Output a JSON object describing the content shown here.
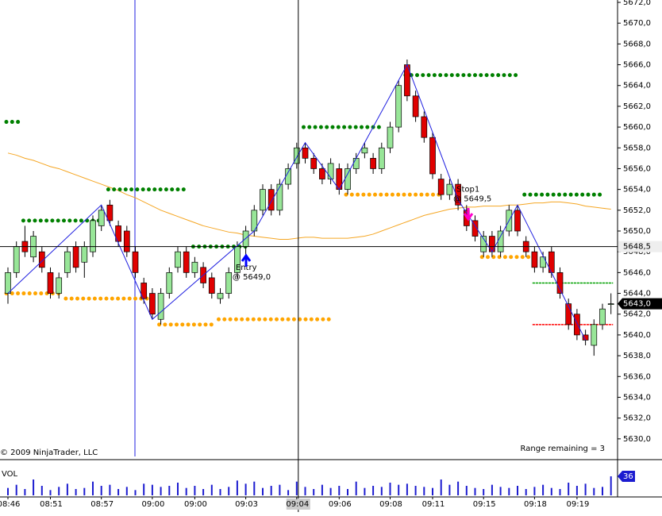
{
  "chart_data": {
    "type": "candlestick",
    "copyright": "© 2009 NinjaTrader, LLC",
    "status": "Range remaining = 3",
    "volume_label": "VOL",
    "ylim": [
      5628,
      5672
    ],
    "yticks": [
      {
        "value": 5630,
        "label": "5630,0"
      },
      {
        "value": 5632,
        "label": "5632,0"
      },
      {
        "value": 5634,
        "label": "5634,0"
      },
      {
        "value": 5636,
        "label": "5636,0"
      },
      {
        "value": 5638,
        "label": "5638,0"
      },
      {
        "value": 5640,
        "label": "5640,0"
      },
      {
        "value": 5642,
        "label": "5642,0"
      },
      {
        "value": 5644,
        "label": "5644,0"
      },
      {
        "value": 5646,
        "label": "5646,0"
      },
      {
        "value": 5648,
        "label": "5648,0"
      },
      {
        "value": 5650,
        "label": "5650,0"
      },
      {
        "value": 5652,
        "label": "5652,0"
      },
      {
        "value": 5654,
        "label": "5654,0"
      },
      {
        "value": 5656,
        "label": "5656,0"
      },
      {
        "value": 5658,
        "label": "5658,0"
      },
      {
        "value": 5660,
        "label": "5660,0"
      },
      {
        "value": 5662,
        "label": "5662,0"
      },
      {
        "value": 5664,
        "label": "5664,0"
      },
      {
        "value": 5666,
        "label": "5666,0"
      },
      {
        "value": 5668,
        "label": "5668,0"
      },
      {
        "value": 5670,
        "label": "5670,0"
      },
      {
        "value": 5672,
        "label": "5672,0"
      }
    ],
    "up_color": "#98e698",
    "down_color": "#e00000",
    "categories": [
      "08:46",
      null,
      null,
      null,
      null,
      "08:51",
      null,
      null,
      null,
      null,
      null,
      "08:57",
      null,
      null,
      null,
      null,
      null,
      "09:00",
      null,
      null,
      null,
      null,
      "09:00",
      null,
      null,
      null,
      null,
      null,
      "09:03",
      null,
      null,
      null,
      null,
      null,
      "09:04",
      null,
      null,
      null,
      null,
      "09:06",
      null,
      null,
      null,
      null,
      null,
      "09:08",
      null,
      null,
      null,
      null,
      "09:11",
      null,
      null,
      null,
      null,
      null,
      "09:15",
      null,
      null,
      null,
      null,
      null,
      "09:18",
      null,
      null,
      null,
      null,
      "09:19",
      null,
      null,
      null,
      null
    ],
    "crosshair": {
      "index": 34,
      "price": {
        "value": 5648.5,
        "label": "5648,5"
      }
    },
    "current_price": {
      "value": 5643,
      "label": "5643,0"
    },
    "candles": [
      [
        5644,
        5646.5,
        5643,
        5646
      ],
      [
        5646,
        5649,
        5645.5,
        5648.5
      ],
      [
        5649,
        5650.5,
        5647.5,
        5648
      ],
      [
        5647.5,
        5650,
        5647,
        5649.5
      ],
      [
        5648,
        5648.5,
        5646,
        5646.5
      ],
      [
        5646,
        5646.5,
        5643.5,
        5644
      ],
      [
        5644,
        5646,
        5643.5,
        5645.5
      ],
      [
        5646,
        5648.5,
        5645.5,
        5648
      ],
      [
        5648.5,
        5649,
        5646,
        5646.5
      ],
      [
        5647,
        5649,
        5645.5,
        5648.5
      ],
      [
        5648,
        5651.5,
        5647.5,
        5651
      ],
      [
        5650.5,
        5652.5,
        5650,
        5652
      ],
      [
        5652.5,
        5653,
        5650.5,
        5651
      ],
      [
        5650.5,
        5651,
        5648.5,
        5649
      ],
      [
        5650,
        5650.5,
        5647.5,
        5648
      ],
      [
        5648,
        5648.5,
        5645.5,
        5646
      ],
      [
        5645,
        5645.5,
        5643,
        5643.5
      ],
      [
        5644,
        5644.5,
        5641.5,
        5642
      ],
      [
        5641.5,
        5644.5,
        5641,
        5644
      ],
      [
        5644,
        5646.5,
        5643.5,
        5646
      ],
      [
        5646.5,
        5648.5,
        5646,
        5648
      ],
      [
        5648,
        5648.5,
        5645.5,
        5646
      ],
      [
        5646,
        5647.5,
        5645.5,
        5647
      ],
      [
        5646.5,
        5647,
        5644.5,
        5645
      ],
      [
        5645.5,
        5646,
        5643.5,
        5644
      ],
      [
        5643.5,
        5644.5,
        5643,
        5644
      ],
      [
        5644,
        5646.5,
        5643.5,
        5646
      ],
      [
        5646,
        5649,
        5645.5,
        5648.5
      ],
      [
        5648.5,
        5650.5,
        5647,
        5650
      ],
      [
        5650,
        5652.5,
        5649.5,
        5652
      ],
      [
        5652,
        5654.5,
        5651.5,
        5654
      ],
      [
        5654,
        5654.5,
        5651.5,
        5652
      ],
      [
        5652,
        5655,
        5651.5,
        5654.5
      ],
      [
        5654.5,
        5656.5,
        5654,
        5656
      ],
      [
        5656.5,
        5658.5,
        5656,
        5658
      ],
      [
        5658,
        5658.5,
        5656.5,
        5657
      ],
      [
        5657,
        5657.5,
        5655.5,
        5656
      ],
      [
        5656,
        5656.5,
        5654.5,
        5655
      ],
      [
        5655,
        5657,
        5654.5,
        5656.5
      ],
      [
        5656,
        5656.5,
        5653.5,
        5654
      ],
      [
        5654,
        5656.5,
        5653.5,
        5656
      ],
      [
        5656,
        5657.5,
        5655.5,
        5657
      ],
      [
        5657.5,
        5658.5,
        5657,
        5658
      ],
      [
        5657,
        5657.5,
        5655.5,
        5656
      ],
      [
        5656,
        5658.5,
        5655.5,
        5658
      ],
      [
        5658,
        5660.5,
        5657.5,
        5660
      ],
      [
        5660,
        5664.5,
        5659.5,
        5664
      ],
      [
        5666,
        5666.5,
        5662.5,
        5663
      ],
      [
        5663,
        5663.5,
        5660.5,
        5661
      ],
      [
        5661,
        5661.5,
        5658.5,
        5659
      ],
      [
        5659,
        5659.5,
        5655,
        5655.5
      ],
      [
        5655,
        5655.5,
        5653,
        5653.5
      ],
      [
        5653.5,
        5655,
        5653,
        5654.5
      ],
      [
        5654.5,
        5655,
        5652,
        5652.5
      ],
      [
        5652,
        5652.5,
        5650,
        5650.5
      ],
      [
        5651,
        5651.5,
        5649,
        5649.5
      ],
      [
        5648,
        5650,
        5647.5,
        5649.5
      ],
      [
        5649.5,
        5650,
        5647.5,
        5648
      ],
      [
        5648,
        5650.5,
        5647.5,
        5650
      ],
      [
        5650,
        5652.5,
        5649.5,
        5652
      ],
      [
        5652,
        5652.5,
        5649.5,
        5650
      ],
      [
        5649,
        5649.5,
        5647.5,
        5648
      ],
      [
        5648,
        5648.5,
        5646,
        5646.5
      ],
      [
        5646.5,
        5648,
        5646,
        5647.5
      ],
      [
        5648,
        5648.5,
        5645.5,
        5646
      ],
      [
        5646,
        5646.5,
        5643.5,
        5644
      ],
      [
        5643,
        5643.5,
        5640.5,
        5641
      ],
      [
        5642,
        5642.5,
        5639.5,
        5640
      ],
      [
        5640,
        5640.5,
        5639,
        5639.5
      ],
      [
        5639,
        5641.5,
        5638,
        5641
      ],
      [
        5641,
        5643,
        5640.5,
        5642.5
      ],
      [
        5643,
        5644,
        5642,
        5643
      ]
    ],
    "ma_color": "#f5a623",
    "ma": [
      5657.5,
      5657.3,
      5657,
      5656.8,
      5656.5,
      5656.2,
      5656,
      5655.7,
      5655.4,
      5655.1,
      5654.8,
      5654.5,
      5654.2,
      5653.9,
      5653.5,
      5653.2,
      5652.8,
      5652.4,
      5652,
      5651.7,
      5651.4,
      5651.1,
      5650.8,
      5650.5,
      5650.3,
      5650.1,
      5649.9,
      5649.8,
      5649.6,
      5649.5,
      5649.4,
      5649.3,
      5649.2,
      5649.2,
      5649.3,
      5649.4,
      5649.4,
      5649.3,
      5649.3,
      5649.3,
      5649.3,
      5649.4,
      5649.5,
      5649.7,
      5650,
      5650.3,
      5650.6,
      5650.9,
      5651.2,
      5651.5,
      5651.7,
      5651.9,
      5652.1,
      5652.2,
      5652.3,
      5652.3,
      5652.4,
      5652.4,
      5652.4,
      5652.5,
      5652.5,
      5652.6,
      5652.7,
      5652.7,
      5652.8,
      5652.8,
      5652.7,
      5652.6,
      5652.4,
      5652.3,
      5652.2,
      5652.1
    ],
    "zigzag_color": "#2020e0",
    "zigzag": [
      [
        0,
        5644
      ],
      [
        11,
        5652.5
      ],
      [
        17,
        5641.5
      ],
      [
        29,
        5650
      ],
      [
        35,
        5658.5
      ],
      [
        39,
        5654
      ],
      [
        47,
        5666
      ],
      [
        53,
        5653
      ],
      [
        57,
        5648
      ],
      [
        60,
        5652.5
      ],
      [
        68,
        5639.5
      ]
    ],
    "levels": [
      {
        "price": 5660.5,
        "start": 0,
        "end": 1,
        "color": "#008000"
      },
      {
        "price": 5651,
        "start": 2,
        "end": 11,
        "color": "#008000"
      },
      {
        "price": 5654,
        "start": 12,
        "end": 21,
        "color": "#008000"
      },
      {
        "price": 5648.5,
        "start": 22,
        "end": 28,
        "color": "#008000"
      },
      {
        "price": 5660,
        "start": 35,
        "end": 44,
        "color": "#008000"
      },
      {
        "price": 5665,
        "start": 47,
        "end": 60,
        "color": "#008000"
      },
      {
        "price": 5653.5,
        "start": 61,
        "end": 70,
        "color": "#008000"
      },
      {
        "price": 5644,
        "start": 0,
        "end": 6,
        "color": "#ffa500"
      },
      {
        "price": 5643.5,
        "start": 7,
        "end": 17,
        "color": "#ffa500"
      },
      {
        "price": 5641,
        "start": 18,
        "end": 24,
        "color": "#ffa500"
      },
      {
        "price": 5641.5,
        "start": 25,
        "end": 38,
        "color": "#ffa500"
      },
      {
        "price": 5653.5,
        "start": 40,
        "end": 51,
        "color": "#ffa500"
      },
      {
        "price": 5647.5,
        "start": 56,
        "end": 62,
        "color": "#ffa500"
      }
    ],
    "orders": [
      {
        "price": 5645,
        "start": 62,
        "end": 71,
        "color": "#00a000"
      },
      {
        "price": 5641,
        "start": 62,
        "end": 71,
        "color": "#ff0000"
      }
    ],
    "annotations": [
      {
        "text": "Entry",
        "detail": "@ 5649,0",
        "index": 27,
        "price": 5646.5
      },
      {
        "text": "Stop1",
        "detail": "@ 5649,5",
        "index": 53,
        "price": 5654
      }
    ],
    "volume_ylim": [
      0,
      60
    ],
    "volume_color": "#1c1cd0",
    "volumes": [
      14,
      20,
      12,
      30,
      18,
      10,
      16,
      22,
      12,
      14,
      26,
      18,
      20,
      12,
      16,
      10,
      22,
      20,
      16,
      18,
      24,
      14,
      18,
      12,
      20,
      12,
      16,
      28,
      22,
      26,
      14,
      18,
      20,
      10,
      26,
      16,
      12,
      20,
      14,
      18,
      12,
      26,
      14,
      18,
      16,
      24,
      20,
      22,
      18,
      16,
      14,
      30,
      20,
      26,
      18,
      14,
      12,
      20,
      16,
      14,
      18,
      12,
      16,
      20,
      14,
      12,
      24,
      18,
      22,
      14,
      16,
      36
    ]
  }
}
